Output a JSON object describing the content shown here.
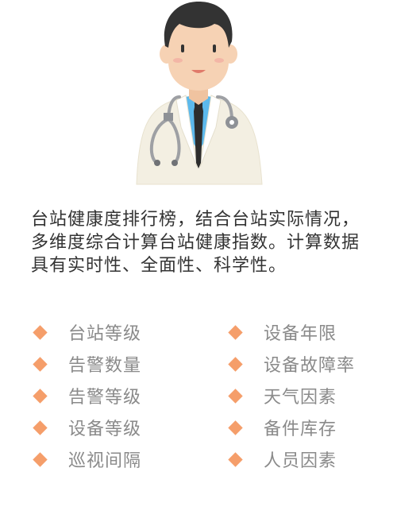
{
  "description": "台站健康度排行榜，结合台站实际情况，多维度综合计算台站健康指数。计算数据具有实时性、全面性、科学性。",
  "features_left": [
    "台站等级",
    "告警数量",
    "告警等级",
    "设备等级",
    "巡视间隔"
  ],
  "features_right": [
    "设备年限",
    "设备故障率",
    "天气因素",
    "备件库存",
    "人员因素"
  ],
  "colors": {
    "bullet": "#f59e6a",
    "description_text": "#333333",
    "feature_text": "#8a8a8a",
    "coat": "#f3efe2",
    "shirt": "#5cb9ec",
    "hair": "#333333",
    "skin": "#f6d2b4"
  },
  "icons": {
    "illustration": "doctor-with-stethoscope",
    "bullet": "diamond-bullet-icon"
  }
}
